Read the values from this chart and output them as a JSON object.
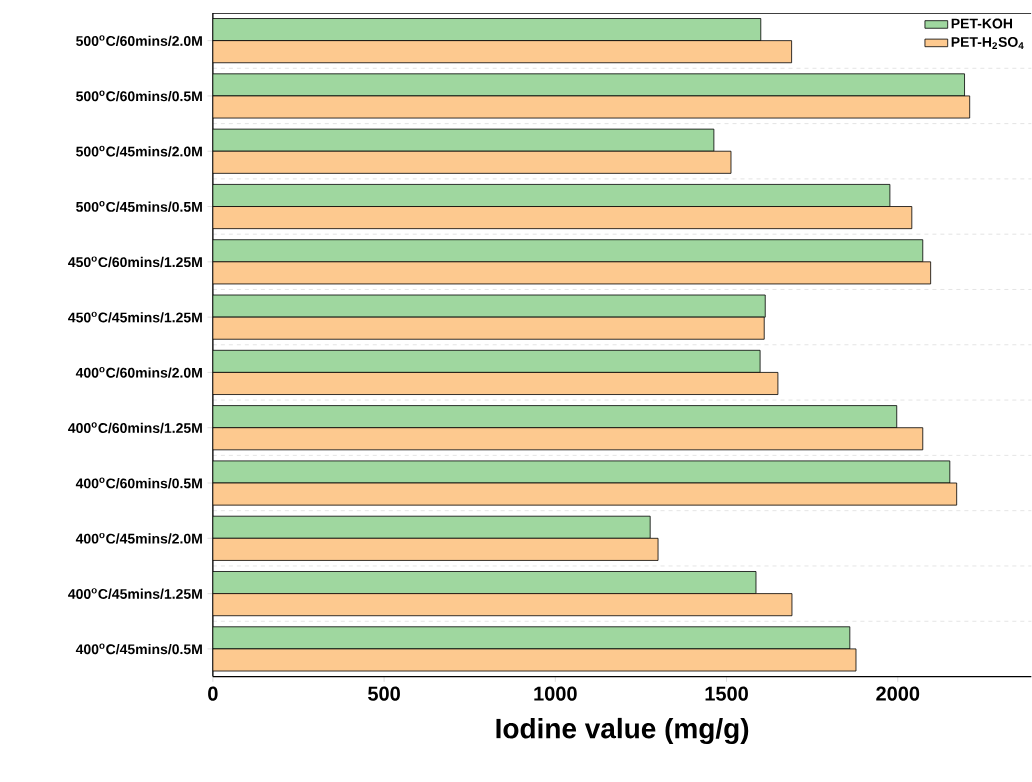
{
  "chart_data": {
    "type": "bar",
    "orientation": "horizontal",
    "xlabel": "Iodine value (mg/g)",
    "categories": [
      "500$^{o}$C/60mins/2.0M",
      "500$^{o}$C/60mins/0.5M",
      "500$^{o}$C/45mins/2.0M",
      "500$^{o}$C/45mins/0.5M",
      "450$^{o}$C/60mins/1.25M",
      "450$^{o}$C/45mins/1.25M",
      "400$^{o}$C/60mins/2.0M",
      "400$^{o}$C/60mins/1.25M",
      "400$^{o}$C/60mins/0.5M",
      "400$^{o}$C/45mins/2.0M",
      "400$^{o}$C/45mins/1.25M",
      "400$^{o}$C/45mins/0.5M"
    ],
    "series": [
      {
        "name": "PET-KOH",
        "color": "#9fd79f",
        "values": [
          1600,
          2195,
          1463,
          1977,
          2073,
          1613,
          1598,
          1997,
          2152,
          1277,
          1586,
          1860
        ]
      },
      {
        "name": "PET-H$_{2}$SO$_{4}$",
        "color": "#fdc98f",
        "values": [
          1690,
          2210,
          1513,
          2041,
          2096,
          1610,
          1650,
          2073,
          2172,
          1300,
          1691,
          1878
        ]
      }
    ],
    "xlim": [
      0,
      2390
    ],
    "xticks": [
      0,
      500,
      1000,
      1500,
      2000
    ],
    "grid": "y",
    "legend": "top right"
  }
}
